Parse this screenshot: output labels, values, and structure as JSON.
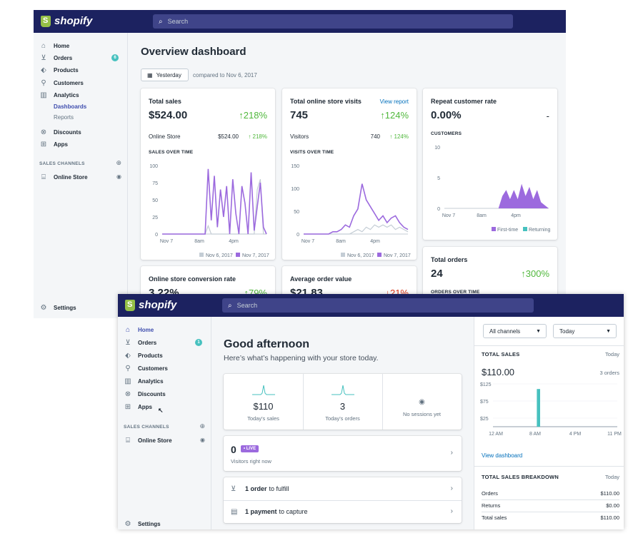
{
  "back": {
    "brand": "shopify",
    "search_placeholder": "Search",
    "nav": [
      {
        "label": "Home",
        "icon": "home-icon"
      },
      {
        "label": "Orders",
        "icon": "orders-icon",
        "badge": "6"
      },
      {
        "label": "Products",
        "icon": "tag-icon"
      },
      {
        "label": "Customers",
        "icon": "person-icon"
      },
      {
        "label": "Analytics",
        "icon": "bar-chart-icon"
      },
      {
        "label": "Discounts",
        "icon": "discount-icon"
      },
      {
        "label": "Apps",
        "icon": "apps-icon"
      }
    ],
    "analytics_sub": [
      "Dashboards",
      "Reports"
    ],
    "sales_channels": "SALES CHANNELS",
    "online_store": "Online Store",
    "settings": "Settings",
    "title": "Overview dashboard",
    "date_button": "Yesterday",
    "compare_text": "compared to Nov 6, 2017",
    "cards": {
      "total_sales": {
        "title": "Total sales",
        "value": "$524.00",
        "change": "↑218%",
        "row_label": "Online Store",
        "row_value": "$524.00",
        "row_change": "↑ 218%",
        "chart_label": "SALES OVER TIME"
      },
      "visits": {
        "title": "Total online store visits",
        "link": "View report",
        "value": "745",
        "change": "↑124%",
        "row_label": "Visitors",
        "row_value": "740",
        "row_change": "↑ 124%",
        "chart_label": "VISITS OVER TIME"
      },
      "repeat": {
        "title": "Repeat customer rate",
        "value": "0.00%",
        "change": "-",
        "chart_label": "CUSTOMERS"
      },
      "conversion": {
        "title": "Online store conversion rate",
        "value": "3.22%",
        "change": "↑79%"
      },
      "aov": {
        "title": "Average order value",
        "value": "$21.83",
        "change": "↓21%"
      },
      "orders": {
        "title": "Total orders",
        "value": "24",
        "change": "↑300%",
        "chart_label": "ORDERS OVER TIME"
      }
    },
    "legend_a": "Nov 6, 2017",
    "legend_b": "Nov 7, 2017",
    "legend_first": "First-time",
    "legend_returning": "Returning",
    "x_ticks": [
      "Nov 7",
      "8am",
      "4pm"
    ]
  },
  "chart_data": [
    {
      "type": "line",
      "title": "SALES OVER TIME",
      "x_ticks": [
        "Nov 7",
        "8am",
        "4pm"
      ],
      "y_ticks": [
        0,
        25,
        50,
        75,
        100
      ],
      "ylim": [
        0,
        100
      ],
      "series": [
        {
          "name": "Nov 6, 2017",
          "values": [
            0,
            0,
            0,
            0,
            0,
            0,
            0,
            0,
            0,
            0,
            0,
            0,
            0,
            0,
            0,
            12,
            0,
            0,
            0,
            0,
            0,
            0,
            0,
            0,
            0,
            0,
            0,
            0,
            0,
            0,
            0,
            65,
            80,
            0,
            0
          ]
        },
        {
          "name": "Nov 7, 2017",
          "values": [
            0,
            0,
            0,
            0,
            0,
            0,
            0,
            0,
            0,
            0,
            0,
            0,
            0,
            0,
            0,
            95,
            20,
            85,
            10,
            65,
            25,
            70,
            0,
            80,
            30,
            0,
            70,
            45,
            0,
            90,
            5,
            40,
            75,
            10,
            0
          ]
        }
      ]
    },
    {
      "type": "line",
      "title": "VISITS OVER TIME",
      "x_ticks": [
        "Nov 7",
        "8am",
        "4pm"
      ],
      "y_ticks": [
        0,
        50,
        100,
        150
      ],
      "ylim": [
        0,
        150
      ],
      "series": [
        {
          "name": "Nov 6, 2017",
          "values": [
            0,
            0,
            0,
            0,
            0,
            0,
            0,
            0,
            0,
            0,
            0,
            0,
            5,
            10,
            5,
            15,
            10,
            20,
            15,
            20,
            15,
            20,
            10,
            15,
            10,
            5
          ]
        },
        {
          "name": "Nov 7, 2017",
          "values": [
            0,
            0,
            0,
            0,
            0,
            0,
            0,
            5,
            5,
            10,
            20,
            15,
            40,
            55,
            110,
            75,
            60,
            45,
            30,
            40,
            25,
            35,
            40,
            25,
            15,
            10
          ]
        }
      ]
    },
    {
      "type": "area",
      "title": "CUSTOMERS",
      "x_ticks": [
        "Nov 7",
        "8am",
        "4pm"
      ],
      "y_ticks": [
        0,
        5,
        10
      ],
      "ylim": [
        0,
        10
      ],
      "series": [
        {
          "name": "First-time",
          "values": [
            0,
            0,
            0,
            0,
            0,
            0,
            0,
            0,
            0,
            0,
            0,
            0,
            0,
            0,
            0,
            2,
            3,
            1.5,
            3,
            1.5,
            4,
            2,
            3.5,
            1.5,
            3,
            1,
            0.5,
            0
          ]
        },
        {
          "name": "Returning",
          "values": [
            0,
            0,
            0,
            0,
            0,
            0,
            0,
            0,
            0,
            0,
            0,
            0,
            0,
            0,
            0,
            0,
            0,
            0,
            0,
            0,
            0,
            0,
            0,
            0,
            0,
            0,
            0,
            0
          ]
        }
      ]
    },
    {
      "type": "bar",
      "title": "TOTAL SALES",
      "x_ticks": [
        "12 AM",
        "8 AM",
        "4 PM",
        "11 PM"
      ],
      "y_ticks": [
        "$125",
        "$75",
        "$25"
      ],
      "ylim": [
        0,
        125
      ],
      "values": [
        0,
        0,
        0,
        0,
        0,
        0,
        0,
        0,
        0,
        0,
        0,
        0,
        110,
        0,
        0,
        0,
        0,
        0,
        0,
        0,
        0,
        0,
        0,
        0,
        0,
        0,
        0,
        0,
        0,
        0,
        0,
        0,
        0,
        0
      ]
    }
  ],
  "front": {
    "brand": "shopify",
    "search_placeholder": "Search",
    "nav": [
      {
        "label": "Home",
        "icon": "home-icon"
      },
      {
        "label": "Orders",
        "icon": "orders-icon",
        "badge": "1"
      },
      {
        "label": "Products",
        "icon": "tag-icon"
      },
      {
        "label": "Customers",
        "icon": "person-icon"
      },
      {
        "label": "Analytics",
        "icon": "bar-chart-icon"
      },
      {
        "label": "Discounts",
        "icon": "discount-icon"
      },
      {
        "label": "Apps",
        "icon": "apps-icon"
      }
    ],
    "sales_channels": "SALES CHANNELS",
    "online_store": "Online Store",
    "settings": "Settings",
    "greeting": "Good afternoon",
    "greeting_sub": "Here’s what’s happening with your store today.",
    "stats": [
      {
        "value": "$110",
        "label": "Today's sales"
      },
      {
        "value": "3",
        "label": "Today's orders"
      },
      {
        "value": "",
        "label": "No sessions yet"
      }
    ],
    "visitors_value": "0",
    "live_badge": "• LIVE",
    "visitors_label": "Visitors right now",
    "task_fulfill_strong": "1 order",
    "task_fulfill_rest": "to fulfill",
    "task_capture_strong": "1 payment",
    "task_capture_rest": "to capture",
    "channel_select": "All channels",
    "date_select": "Today",
    "total_sales_head": "TOTAL SALES",
    "today": "Today",
    "total_sales_value": "$110.00",
    "total_sales_orders": "3 orders",
    "view_dashboard": "View dashboard",
    "breakdown_head": "TOTAL SALES BREAKDOWN",
    "breakdown": [
      {
        "label": "Orders",
        "value": "$110.00"
      },
      {
        "label": "Returns",
        "value": "$0.00"
      },
      {
        "label": "Total sales",
        "value": "$110.00"
      }
    ]
  },
  "colors": {
    "nav_bg": "#1c2260",
    "purple": "#9c6ade",
    "teal": "#47c1bf",
    "green": "#50b83c",
    "red": "#de3618",
    "link": "#006fbb"
  }
}
